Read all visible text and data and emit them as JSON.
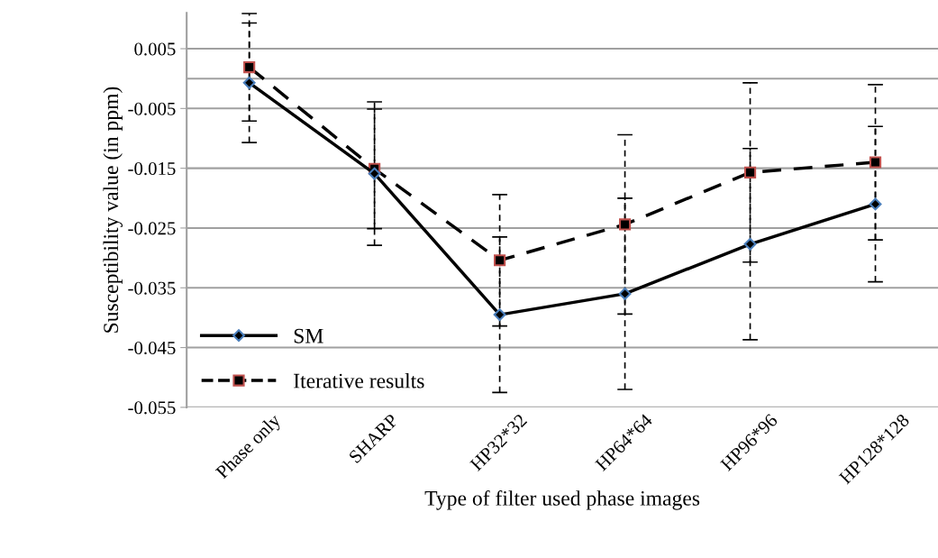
{
  "chart_data": {
    "type": "line",
    "xlabel": "Type of filter used phase images",
    "ylabel": "Susceptibility value (in ppm)",
    "categories": [
      "Phase only",
      "SHARP",
      "HP32*32",
      "HP64*64",
      "HP96*96",
      "HP128*128"
    ],
    "series": [
      {
        "name": "SM",
        "color": "#000000",
        "marker": "diamond",
        "line_style": "solid",
        "values": [
          -0.0007,
          -0.0159,
          -0.0395,
          -0.036,
          -0.0277,
          -0.021
        ],
        "errors": [
          0.01,
          0.012,
          0.013,
          0.016,
          0.016,
          0.013
        ]
      },
      {
        "name": "Iterative results",
        "color": "#000000",
        "marker": "square",
        "line_style": "dashed",
        "values": [
          0.0019,
          -0.0151,
          -0.0304,
          -0.0244,
          -0.0157,
          -0.014
        ],
        "errors": [
          0.009,
          0.01,
          0.011,
          0.015,
          0.015,
          0.013
        ]
      }
    ],
    "ylim": [
      -0.055,
      0.011
    ],
    "yticks": [
      0.005,
      -0.005,
      -0.015,
      -0.025,
      -0.035,
      -0.045,
      -0.055
    ],
    "ref_lines": [
      {
        "axis": "y",
        "value": 0,
        "color": "#a0a0a0"
      }
    ],
    "grid": "y",
    "legend": "bottom left"
  }
}
